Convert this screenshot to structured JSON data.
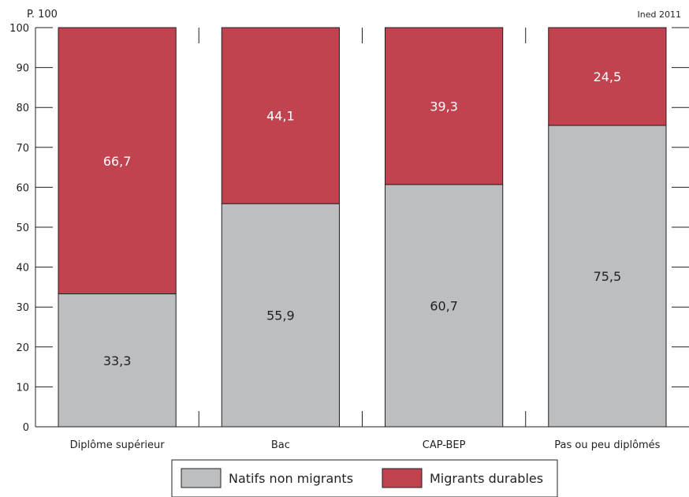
{
  "header": {
    "unit_label": "P. 100",
    "source_label": "Ined 2011"
  },
  "chart_data": {
    "type": "bar",
    "stacked": true,
    "categories": [
      "Diplôme supérieur",
      "Bac",
      "CAP-BEP",
      "Pas ou peu diplômés"
    ],
    "series": [
      {
        "name": "Natifs non migrants",
        "values": [
          33.3,
          55.9,
          60.7,
          75.5
        ],
        "labels": [
          "33,3",
          "55,9",
          "60,7",
          "75,5"
        ],
        "color": "#bcbec0",
        "label_color": "#231f20"
      },
      {
        "name": "Migrants durables",
        "values": [
          66.7,
          44.1,
          39.3,
          24.5
        ],
        "labels": [
          "66,7",
          "44,1",
          "39,3",
          "24,5"
        ],
        "color": "#c1434f",
        "label_color": "#ffffff"
      }
    ],
    "ylim": [
      0,
      100
    ],
    "yticks": [
      0,
      10,
      20,
      30,
      40,
      50,
      60,
      70,
      80,
      90,
      100
    ],
    "grid": false,
    "legend_position": "bottom"
  }
}
